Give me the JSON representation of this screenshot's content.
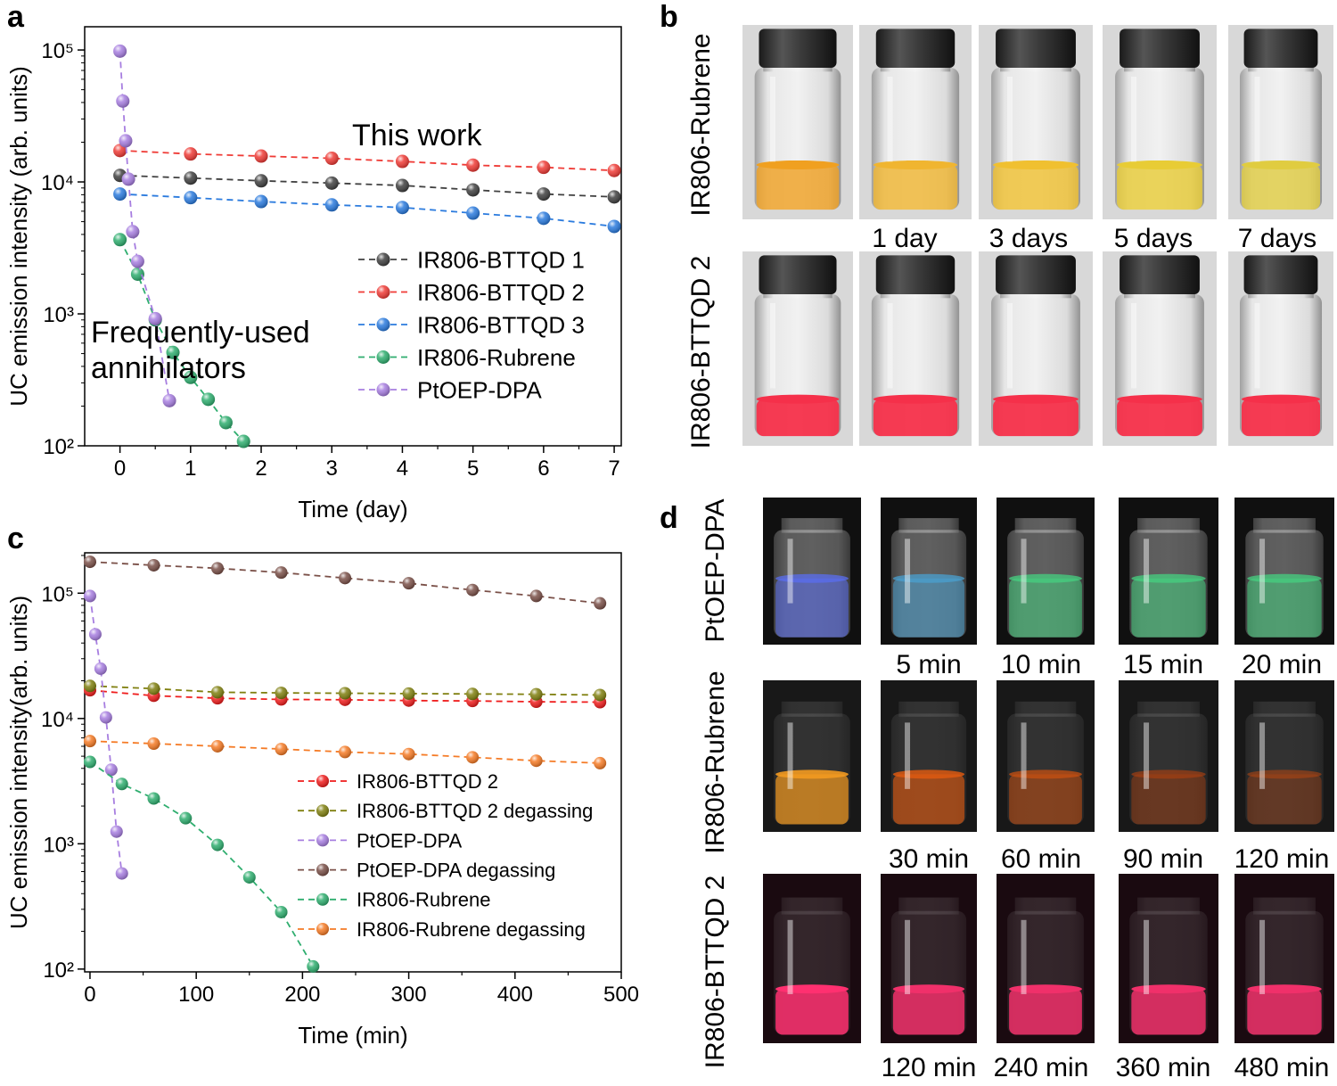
{
  "panel_letters": {
    "a": "a",
    "b": "b",
    "c": "c",
    "d": "d"
  },
  "chart_data": [
    {
      "id": "a",
      "type": "line",
      "xlabel": "Time (day)",
      "ylabel": "UC emission intensity (arb. units)",
      "xlim": [
        -0.5,
        7.1
      ],
      "ylim": [
        100,
        150000
      ],
      "yscale": "log",
      "xticks": [
        "0",
        "1",
        "2",
        "3",
        "4",
        "5",
        "6",
        "7"
      ],
      "yticks": [
        "10²",
        "10³",
        "10⁴",
        "10⁵"
      ],
      "legend_position": "right",
      "annotations": [
        {
          "text": "This work"
        },
        {
          "text": "Frequently-used"
        },
        {
          "text": "annihilators"
        }
      ],
      "series": [
        {
          "name": "IR806-BTTQD 1",
          "color": "#404040",
          "x": [
            0,
            1,
            2,
            3,
            4,
            5,
            6,
            7
          ],
          "y": [
            11200,
            10700,
            10200,
            9800,
            9400,
            8700,
            8100,
            7700
          ]
        },
        {
          "name": "IR806-BTTQD 2",
          "color": "#ef3b36",
          "x": [
            0,
            1,
            2,
            3,
            4,
            5,
            6,
            7
          ],
          "y": [
            17300,
            16300,
            15700,
            15100,
            14300,
            13400,
            12900,
            12200
          ]
        },
        {
          "name": "IR806-BTTQD 3",
          "color": "#2b7bde",
          "x": [
            0,
            1,
            2,
            3,
            4,
            5,
            6,
            7
          ],
          "y": [
            8100,
            7600,
            7100,
            6700,
            6400,
            5800,
            5300,
            4600
          ]
        },
        {
          "name": "IR806-Rubrene",
          "color": "#2fae6f",
          "x": [
            0,
            0.25,
            0.5,
            0.75,
            1,
            1.25,
            1.5,
            1.75
          ],
          "y": [
            3650,
            2000,
            900,
            510,
            330,
            225,
            150,
            108
          ]
        },
        {
          "name": "PtOEP-DPA",
          "color": "#a77ee0",
          "x": [
            0,
            0.04,
            0.08,
            0.12,
            0.18,
            0.25,
            0.5,
            0.7
          ],
          "y": [
            98000,
            41000,
            20500,
            10500,
            4200,
            2500,
            920,
            220
          ]
        }
      ]
    },
    {
      "id": "c",
      "type": "line",
      "xlabel": "Time (min)",
      "ylabel": "UC emission intensity(arb. units)",
      "xlim": [
        -5,
        500
      ],
      "ylim": [
        95,
        210000
      ],
      "yscale": "log",
      "xticks": [
        "0",
        "100",
        "200",
        "300",
        "400",
        "500"
      ],
      "yticks": [
        "10²",
        "10³",
        "10⁴",
        "10⁵"
      ],
      "legend_position": "lower-right",
      "series": [
        {
          "name": "IR806-BTTQD 2",
          "color": "#ef1d1d",
          "x": [
            0,
            60,
            120,
            180,
            240,
            300,
            360,
            420,
            480
          ],
          "y": [
            16800,
            15200,
            14500,
            14200,
            14100,
            13900,
            13800,
            13600,
            13500
          ]
        },
        {
          "name": "IR806-BTTQD 2 degassing",
          "color": "#808010",
          "x": [
            0,
            60,
            120,
            180,
            240,
            300,
            360,
            420,
            480
          ],
          "y": [
            18200,
            17300,
            16200,
            16000,
            15900,
            15800,
            15700,
            15600,
            15400
          ]
        },
        {
          "name": "PtOEP-DPA",
          "color": "#a77ee0",
          "x": [
            0,
            5,
            10,
            15,
            20,
            25,
            30
          ],
          "y": [
            95000,
            47000,
            25000,
            10200,
            3900,
            1250,
            580
          ]
        },
        {
          "name": "PtOEP-DPA degassing",
          "color": "#7a5048",
          "x": [
            0,
            60,
            120,
            180,
            240,
            300,
            360,
            420,
            480
          ],
          "y": [
            178000,
            167000,
            158000,
            146000,
            132000,
            120000,
            106000,
            95000,
            83000
          ]
        },
        {
          "name": "IR806-Rubrene",
          "color": "#2fae6f",
          "x": [
            0,
            30,
            60,
            90,
            120,
            150,
            180,
            210
          ],
          "y": [
            4500,
            3000,
            2300,
            1600,
            980,
            540,
            285,
            105
          ]
        },
        {
          "name": "IR806-Rubrene degassing",
          "color": "#f57b26",
          "x": [
            0,
            60,
            120,
            180,
            240,
            300,
            360,
            420,
            480
          ],
          "y": [
            6600,
            6300,
            6000,
            5700,
            5400,
            5200,
            4900,
            4600,
            4400
          ]
        }
      ]
    }
  ],
  "panel_b": {
    "row_labels": [
      "IR806-Rubrene",
      "IR806-BTTQD 2"
    ],
    "time_labels": [
      "1 day",
      "3 days",
      "5 days",
      "7 days"
    ],
    "rows": [
      {
        "liquid_colors": [
          "#f0a020",
          "#f0b530",
          "#f0c030",
          "#e8cc35",
          "#e0cc40"
        ]
      },
      {
        "liquid_colors": [
          "#f5304a",
          "#f5304a",
          "#f5304a",
          "#f5304a",
          "#f5304a"
        ]
      }
    ]
  },
  "panel_d": {
    "row_labels": [
      "PtOEP-DPA",
      "IR806-Rubrene",
      "IR806-BTTQD 2"
    ],
    "rows": [
      {
        "time_labels": [
          "5 min",
          "10 min",
          "15 min",
          "20 min"
        ],
        "glow_colors": [
          "#5a6df0",
          "#4aa0d0",
          "#45d080",
          "#45d080",
          "#45d080"
        ]
      },
      {
        "time_labels": [
          "30 min",
          "60 min",
          "90 min",
          "120 min"
        ],
        "glow_colors": [
          "#f39a20",
          "#e05a10",
          "#c85010",
          "#a84010",
          "#b04512"
        ]
      },
      {
        "time_labels": [
          "120 min",
          "240 min",
          "360 min",
          "480 min"
        ],
        "glow_colors": [
          "#ff3070",
          "#f0306a",
          "#f0306a",
          "#f0306a",
          "#f0306a"
        ]
      }
    ]
  }
}
